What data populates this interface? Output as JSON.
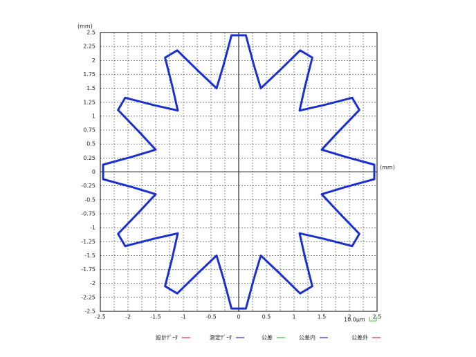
{
  "chart_data": {
    "type": "line",
    "x_unit": "(mm)",
    "y_unit": "(mm)",
    "scale_label": "10.0μm",
    "xlim": [
      -2.5,
      2.5
    ],
    "ylim": [
      -2.5,
      2.5
    ],
    "xticks": [
      -2.5,
      -2,
      -1.5,
      -1,
      -0.5,
      0,
      0.5,
      1,
      1.5,
      2,
      2.5
    ],
    "xminorticks": [
      -2.25,
      -1.75,
      -1.25,
      -0.75,
      -0.25,
      0.25,
      0.75,
      1.25,
      1.75,
      2.25
    ],
    "yticks": [
      -2.5,
      -2.25,
      -2,
      -1.75,
      -1.5,
      -1.25,
      -1,
      -0.75,
      -0.5,
      -0.25,
      0,
      0.25,
      0.5,
      0.75,
      1,
      1.25,
      1.5,
      1.75,
      2,
      2.25,
      2.5
    ],
    "grid": true,
    "series": [
      {
        "name": "設計ﾃﾞｰﾀ",
        "color": "#e03030"
      },
      {
        "name": "測定ﾃﾞｰﾀ",
        "color": "#1a2fd0",
        "x": [
          2.45,
          1.93,
          1.5,
          1.81,
          2.18,
          2.05,
          1.54,
          1.1,
          1.2,
          1.33,
          1.11,
          0.73,
          0.4,
          0.27,
          0.13,
          -0.13,
          -0.27,
          -0.4,
          -0.73,
          -1.11,
          -1.33,
          -1.2,
          -1.1,
          -1.54,
          -2.05,
          -2.18,
          -1.81,
          -1.5,
          -1.93,
          -2.45,
          -2.45,
          -1.93,
          -1.5,
          -1.81,
          -2.18,
          -2.05,
          -1.54,
          -1.1,
          -1.2,
          -1.33,
          -1.11,
          -0.73,
          -0.4,
          -0.27,
          -0.13,
          0.13,
          0.27,
          0.4,
          0.73,
          1.11,
          1.33,
          1.2,
          1.1,
          1.54,
          2.05,
          2.18,
          1.81,
          1.5,
          1.93,
          2.45
        ],
        "y": [
          0.13,
          0.27,
          0.4,
          0.73,
          1.11,
          1.33,
          1.2,
          1.1,
          1.54,
          2.05,
          2.18,
          1.81,
          1.5,
          1.93,
          2.45,
          2.45,
          1.93,
          1.5,
          1.81,
          2.18,
          2.05,
          1.54,
          1.1,
          1.2,
          1.33,
          1.11,
          0.73,
          0.4,
          0.27,
          0.13,
          -0.13,
          -0.27,
          -0.4,
          -0.73,
          -1.11,
          -1.33,
          -1.2,
          -1.1,
          -1.54,
          -2.05,
          -2.18,
          -1.81,
          -1.5,
          -1.93,
          -2.45,
          -2.45,
          -1.93,
          -1.5,
          -1.81,
          -2.18,
          -2.05,
          -1.54,
          -1.1,
          -1.2,
          -1.33,
          -1.11,
          -0.73,
          -0.4,
          -0.27,
          -0.13
        ]
      },
      {
        "name": "公差",
        "color": "#3cc43c"
      },
      {
        "name": "公差内",
        "color": "#1a2fd0"
      },
      {
        "name": "公差外",
        "color": "#e03030"
      }
    ]
  }
}
